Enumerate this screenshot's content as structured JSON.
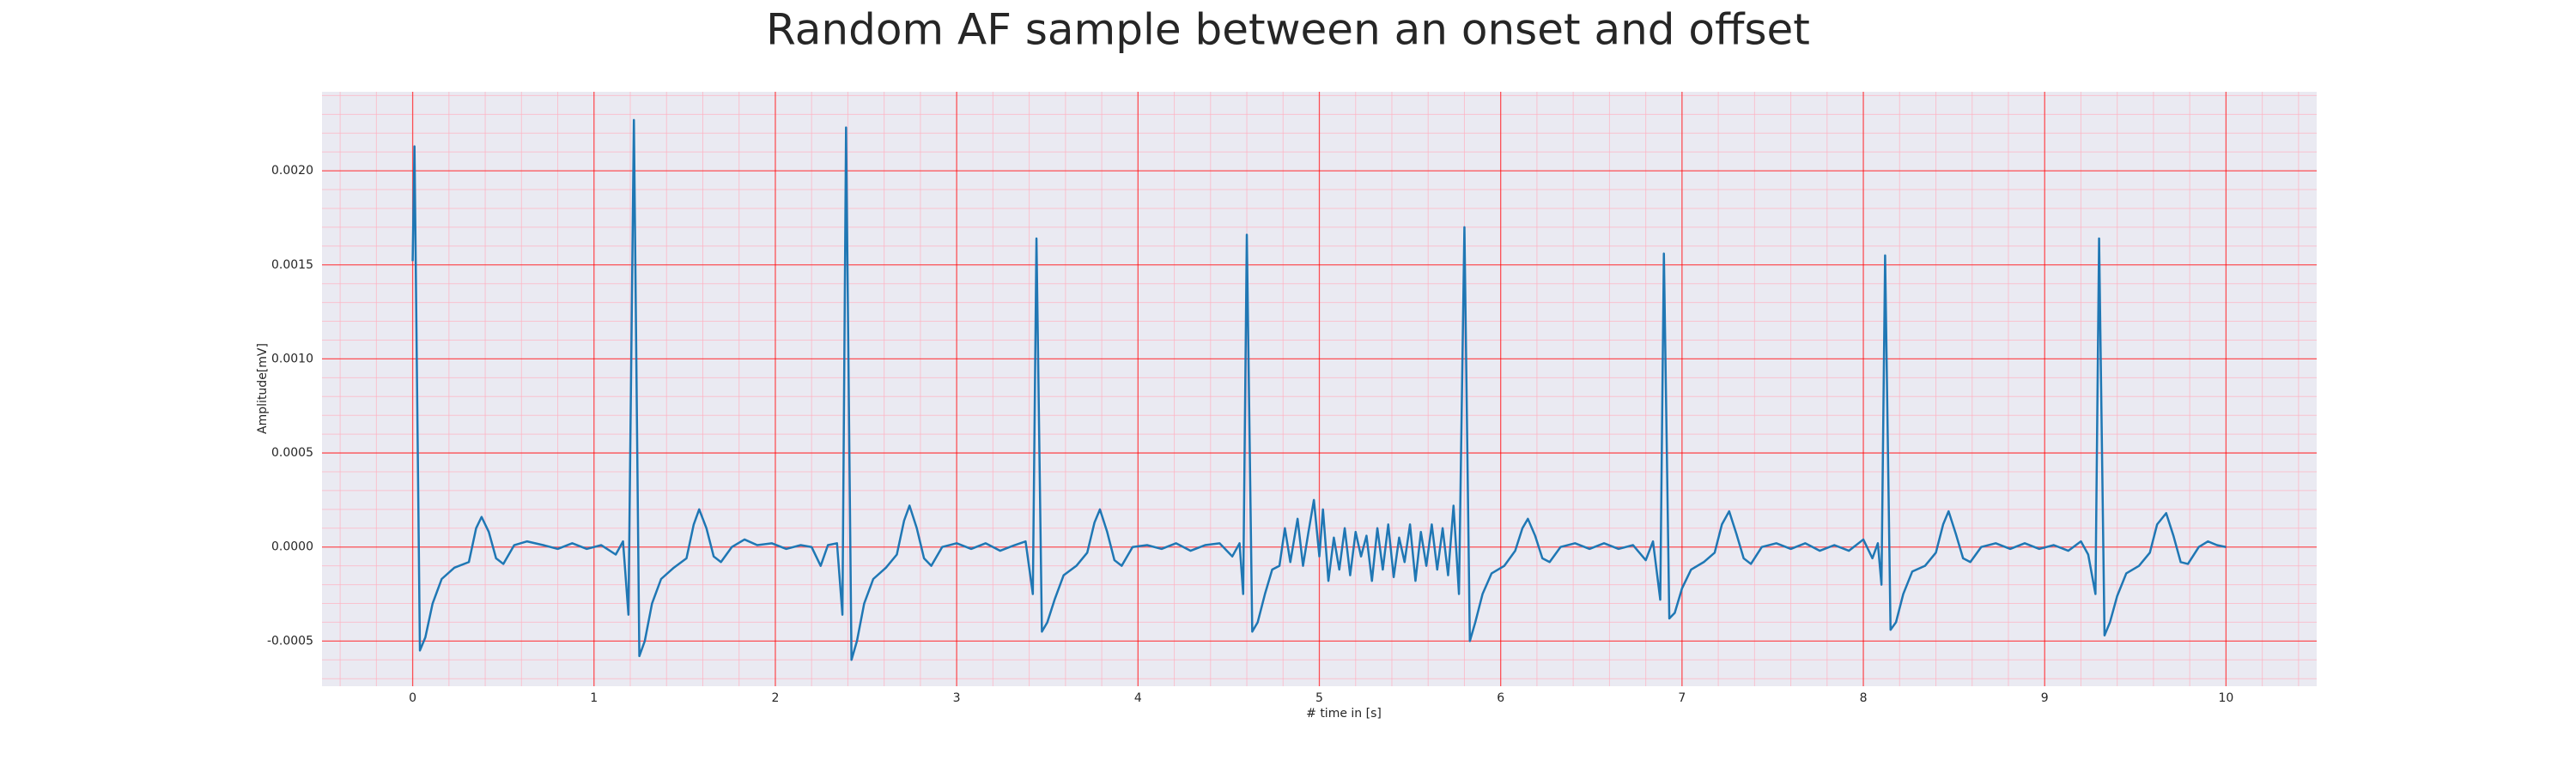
{
  "chart_data": {
    "type": "line",
    "title": "Random AF sample between an onset and offset",
    "xlabel": "# time in [s]",
    "ylabel": "Amplitude[mV]",
    "color": "#1f77b4",
    "background": "#eaeaf2",
    "grid": true,
    "grid_color": "#ff0000",
    "minor_grid": true,
    "minor_grid_color": "#ffb0c0",
    "xlim": [
      -0.5,
      10.5
    ],
    "ylim": [
      -0.00074,
      0.00242
    ],
    "xticks": [
      0,
      1,
      2,
      3,
      4,
      5,
      6,
      7,
      8,
      9,
      10
    ],
    "yticks": [
      {
        "value": -0.0005,
        "label": "-0.0005"
      },
      {
        "value": 0,
        "label": "0.0000"
      },
      {
        "value": 0.0005,
        "label": "0.0005"
      },
      {
        "value": 0.001,
        "label": "0.0010"
      },
      {
        "value": 0.0015,
        "label": "0.0015"
      },
      {
        "value": 0.002,
        "label": "0.0020"
      }
    ],
    "x": [
      0.0,
      0.01,
      0.04,
      0.07,
      0.11,
      0.16,
      0.23,
      0.31,
      0.35,
      0.38,
      0.42,
      0.46,
      0.5,
      0.56,
      0.63,
      0.72,
      0.8,
      0.88,
      0.96,
      1.04,
      1.12,
      1.16,
      1.19,
      1.22,
      1.25,
      1.28,
      1.32,
      1.37,
      1.44,
      1.51,
      1.55,
      1.58,
      1.62,
      1.66,
      1.7,
      1.76,
      1.83,
      1.9,
      1.98,
      2.06,
      2.14,
      2.2,
      2.25,
      2.29,
      2.34,
      2.37,
      2.39,
      2.42,
      2.45,
      2.49,
      2.54,
      2.61,
      2.67,
      2.71,
      2.74,
      2.78,
      2.82,
      2.86,
      2.92,
      3.0,
      3.08,
      3.16,
      3.24,
      3.32,
      3.38,
      3.42,
      3.44,
      3.47,
      3.5,
      3.54,
      3.59,
      3.66,
      3.72,
      3.76,
      3.79,
      3.83,
      3.87,
      3.91,
      3.97,
      4.05,
      4.13,
      4.21,
      4.29,
      4.37,
      4.45,
      4.52,
      4.56,
      4.58,
      4.6,
      4.63,
      4.66,
      4.7,
      4.74,
      4.78,
      4.81,
      4.84,
      4.88,
      4.91,
      4.94,
      4.97,
      5.0,
      5.02,
      5.05,
      5.08,
      5.11,
      5.14,
      5.17,
      5.2,
      5.23,
      5.26,
      5.29,
      5.32,
      5.35,
      5.38,
      5.41,
      5.44,
      5.47,
      5.5,
      5.53,
      5.56,
      5.59,
      5.62,
      5.65,
      5.68,
      5.71,
      5.74,
      5.77,
      5.8,
      5.83,
      5.86,
      5.9,
      5.95,
      6.02,
      6.08,
      6.12,
      6.15,
      6.19,
      6.23,
      6.27,
      6.33,
      6.41,
      6.49,
      6.57,
      6.65,
      6.73,
      6.8,
      6.84,
      6.88,
      6.9,
      6.93,
      6.96,
      7.0,
      7.05,
      7.12,
      7.18,
      7.22,
      7.26,
      7.3,
      7.34,
      7.38,
      7.44,
      7.52,
      7.6,
      7.68,
      7.76,
      7.84,
      7.92,
      8.0,
      8.05,
      8.08,
      8.1,
      8.12,
      8.15,
      8.18,
      8.22,
      8.27,
      8.34,
      8.4,
      8.44,
      8.47,
      8.51,
      8.55,
      8.59,
      8.65,
      8.73,
      8.81,
      8.89,
      8.97,
      9.05,
      9.13,
      9.2,
      9.24,
      9.28,
      9.3,
      9.33,
      9.36,
      9.4,
      9.45,
      9.52,
      9.58,
      9.62,
      9.67,
      9.71,
      9.75,
      9.79,
      9.85,
      9.9,
      9.95,
      10.0
    ],
    "values": [
      0.00152,
      0.00213,
      -0.00055,
      -0.00048,
      -0.0003,
      -0.00017,
      -0.00011,
      -8e-05,
      0.0001,
      0.00016,
      8e-05,
      -6e-05,
      -9e-05,
      1e-05,
      3e-05,
      1e-05,
      -1e-05,
      2e-05,
      -1e-05,
      1e-05,
      -4e-05,
      3e-05,
      -0.00036,
      0.00227,
      -0.00058,
      -0.0005,
      -0.0003,
      -0.00017,
      -0.00011,
      -6e-05,
      0.00012,
      0.0002,
      0.0001,
      -5e-05,
      -8e-05,
      0.0,
      4e-05,
      1e-05,
      2e-05,
      -1e-05,
      1e-05,
      0.0,
      -0.0001,
      1e-05,
      2e-05,
      -0.00036,
      0.00223,
      -0.0006,
      -0.0005,
      -0.0003,
      -0.00017,
      -0.00011,
      -4e-05,
      0.00014,
      0.00022,
      0.0001,
      -6e-05,
      -0.0001,
      0.0,
      2e-05,
      -1e-05,
      2e-05,
      -2e-05,
      1e-05,
      3e-05,
      -0.00025,
      0.00164,
      -0.00045,
      -0.0004,
      -0.00028,
      -0.00015,
      -0.0001,
      -3e-05,
      0.00013,
      0.0002,
      8e-05,
      -7e-05,
      -0.0001,
      0.0,
      1e-05,
      -1e-05,
      2e-05,
      -2e-05,
      1e-05,
      2e-05,
      -5e-05,
      2e-05,
      -0.00025,
      0.00166,
      -0.00045,
      -0.0004,
      -0.00025,
      -0.00012,
      -0.0001,
      0.0001,
      -8e-05,
      0.00015,
      -0.0001,
      8e-05,
      0.00025,
      -5e-05,
      0.0002,
      -0.00018,
      5e-05,
      -0.00012,
      0.0001,
      -0.00015,
      8e-05,
      -5e-05,
      6e-05,
      -0.00018,
      0.0001,
      -0.00012,
      0.00012,
      -0.00016,
      5e-05,
      -8e-05,
      0.00012,
      -0.00018,
      8e-05,
      -0.0001,
      0.00012,
      -0.00012,
      0.0001,
      -0.00015,
      0.00022,
      -0.00025,
      0.0017,
      -0.0005,
      -0.0004,
      -0.00025,
      -0.00014,
      -0.0001,
      -2e-05,
      0.0001,
      0.00015,
      6e-05,
      -6e-05,
      -8e-05,
      0.0,
      2e-05,
      -1e-05,
      2e-05,
      -1e-05,
      1e-05,
      -7e-05,
      3e-05,
      -0.00028,
      0.00156,
      -0.00038,
      -0.00035,
      -0.00022,
      -0.00012,
      -8e-05,
      -3e-05,
      0.00012,
      0.00019,
      7e-05,
      -6e-05,
      -9e-05,
      0.0,
      2e-05,
      -1e-05,
      2e-05,
      -2e-05,
      1e-05,
      -2e-05,
      4e-05,
      -6e-05,
      2e-05,
      -0.0002,
      0.00155,
      -0.00044,
      -0.0004,
      -0.00025,
      -0.00013,
      -0.0001,
      -3e-05,
      0.00012,
      0.00019,
      7e-05,
      -6e-05,
      -8e-05,
      0.0,
      2e-05,
      -1e-05,
      2e-05,
      -1e-05,
      1e-05,
      -2e-05,
      3e-05,
      -4e-05,
      -0.00025,
      0.00164,
      -0.00047,
      -0.0004,
      -0.00026,
      -0.00014,
      -0.0001,
      -3e-05,
      0.00012,
      0.00018,
      6e-05,
      -8e-05,
      -9e-05,
      0.0,
      3e-05,
      1e-05,
      0.0
    ]
  }
}
